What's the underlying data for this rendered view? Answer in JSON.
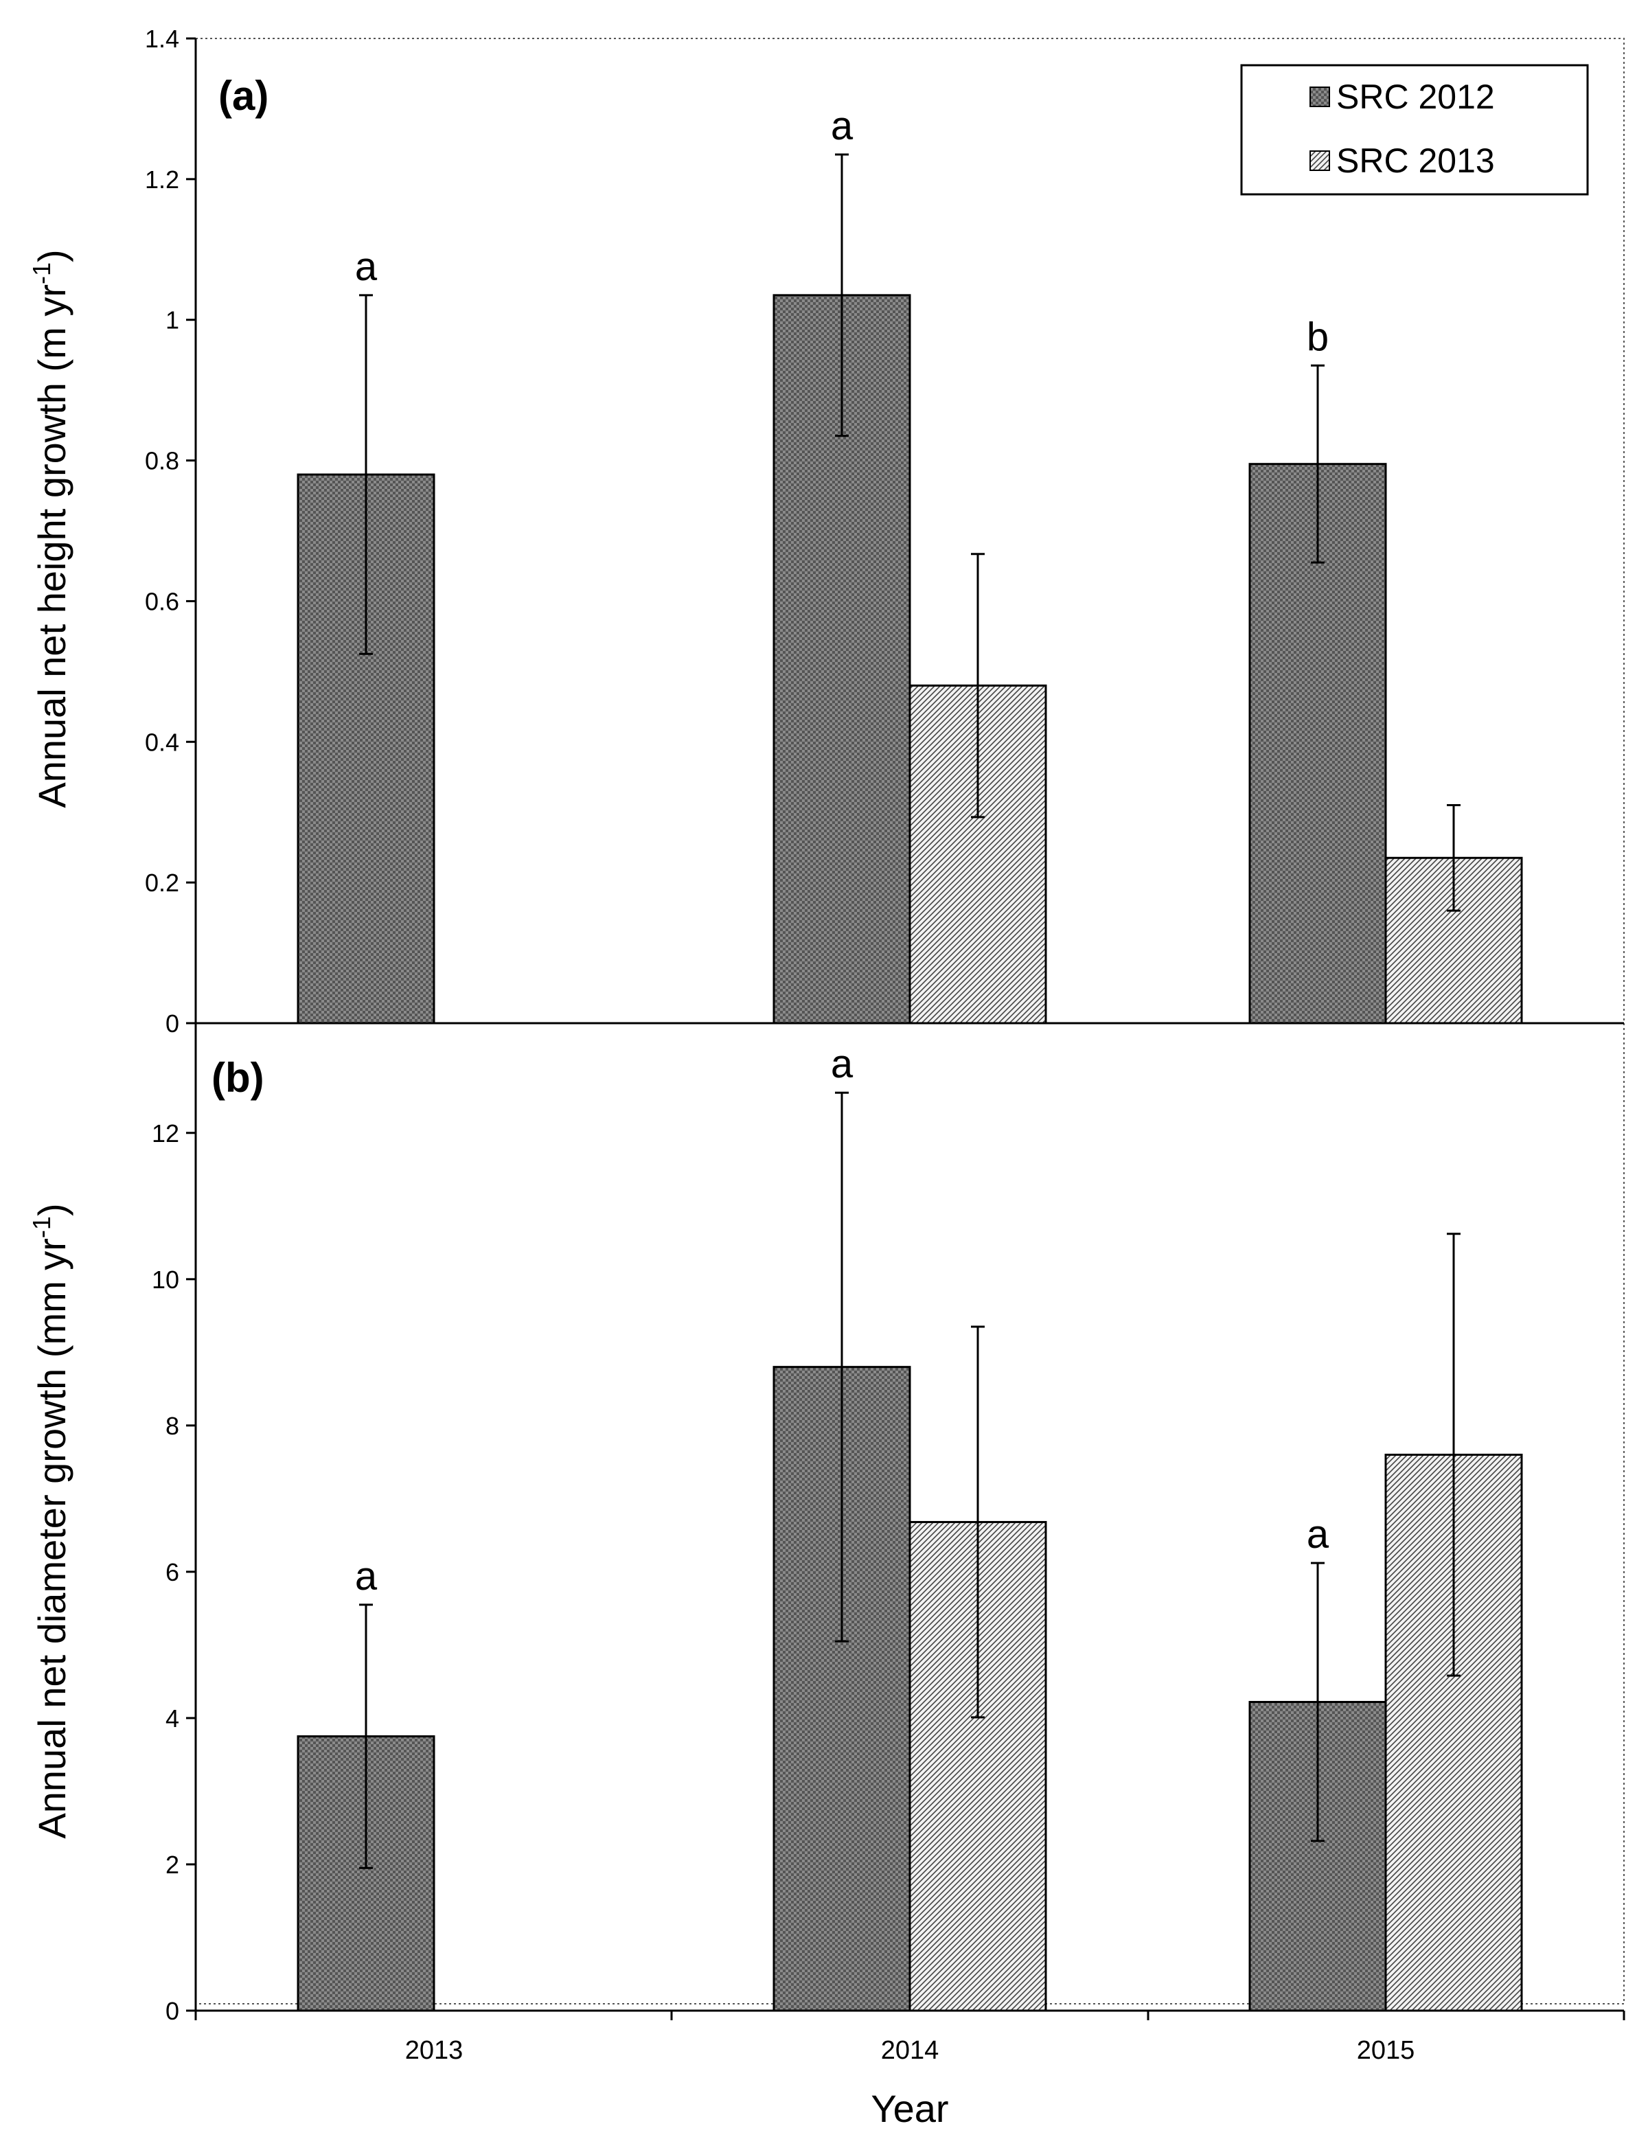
{
  "chart_data": [
    {
      "type": "bar",
      "panel": "(a)",
      "categories": [
        "2013",
        "2014",
        "2015"
      ],
      "ylabel": "Annual net height growth (m yr",
      "ylabel_sup": "-1",
      "ylabel_close": ")",
      "ylim": [
        0,
        1.4
      ],
      "yticks": [
        0,
        0.2,
        0.4,
        0.6,
        0.8,
        1,
        1.2,
        1.4
      ],
      "ytick_labels": [
        "0",
        "0.2",
        "0.4",
        "0.6",
        "0.8",
        "1",
        "1.2",
        "1.4"
      ],
      "series": [
        {
          "name": "SRC 2012",
          "values": [
            0.78,
            1.035,
            0.795
          ],
          "errors": [
            0.255,
            0.2,
            0.14
          ],
          "letters": [
            "a",
            "a",
            "b"
          ]
        },
        {
          "name": "SRC 2013",
          "values": [
            null,
            0.48,
            0.235
          ],
          "errors": [
            null,
            0.187,
            0.075
          ],
          "letters": [
            null,
            null,
            null
          ]
        }
      ],
      "legend": {
        "position": "top-right",
        "entries": [
          "SRC 2012",
          "SRC 2013"
        ]
      }
    },
    {
      "type": "bar",
      "panel": "(b)",
      "categories": [
        "2013",
        "2014",
        "2015"
      ],
      "xlabel": "Year",
      "ylabel": "Annual net diameter growth (mm yr",
      "ylabel_sup": "-1",
      "ylabel_close": ")",
      "ylim": [
        0,
        13.5
      ],
      "yticks": [
        0,
        2,
        4,
        6,
        8,
        10,
        12
      ],
      "ytick_labels": [
        "0",
        "2",
        "4",
        "6",
        "8",
        "10",
        "12"
      ],
      "series": [
        {
          "name": "SRC 2012",
          "values": [
            3.75,
            8.8,
            4.22
          ],
          "errors": [
            1.8,
            3.75,
            1.9
          ],
          "letters": [
            "a",
            "a",
            "a"
          ]
        },
        {
          "name": "SRC 2013",
          "values": [
            null,
            6.68,
            7.6
          ],
          "errors": [
            null,
            2.67,
            3.02
          ],
          "letters": [
            null,
            null,
            null
          ]
        }
      ]
    }
  ],
  "colors": {
    "series_2012": "#6e6e6e",
    "series_2013": "#e2e2e2",
    "axis": "#000000"
  }
}
